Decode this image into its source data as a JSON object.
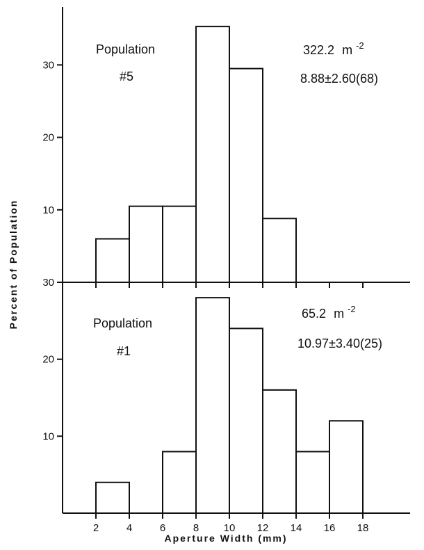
{
  "chart_data": [
    {
      "type": "bar",
      "subtype": "histogram",
      "bin_edges": [
        2,
        4,
        6,
        8,
        10,
        12,
        14
      ],
      "values": [
        6,
        10.5,
        10.5,
        35.3,
        29.5,
        8.8
      ],
      "ylim": [
        0,
        38
      ],
      "xlim": [
        0,
        19
      ],
      "yticks": [
        "10",
        "20",
        "30"
      ],
      "annotations": {
        "population": "Population",
        "number": "#5",
        "density": "322.2",
        "density_unit": "m",
        "density_exp": "-2",
        "stats": "8.88±2.60(68)"
      }
    },
    {
      "type": "bar",
      "subtype": "histogram",
      "bin_edges": [
        2,
        4,
        6,
        8,
        10,
        12,
        14,
        16,
        18
      ],
      "values": [
        4,
        0,
        8,
        28,
        24,
        16,
        8,
        12
      ],
      "ylim": [
        0,
        30
      ],
      "xlim": [
        0,
        19
      ],
      "yticks": [
        "10",
        "20",
        "30"
      ],
      "xticks": [
        "2",
        "4",
        "6",
        "8",
        "10",
        "12",
        "14",
        "16",
        "18"
      ],
      "annotations": {
        "population": "Population",
        "number": "#1",
        "density": "65.2",
        "density_unit": "m",
        "density_exp": "-2",
        "stats": "10.97±3.40(25)"
      }
    }
  ],
  "labels": {
    "ylabel": "Percent of Population",
    "xlabel": "Aperture Width (mm)"
  }
}
